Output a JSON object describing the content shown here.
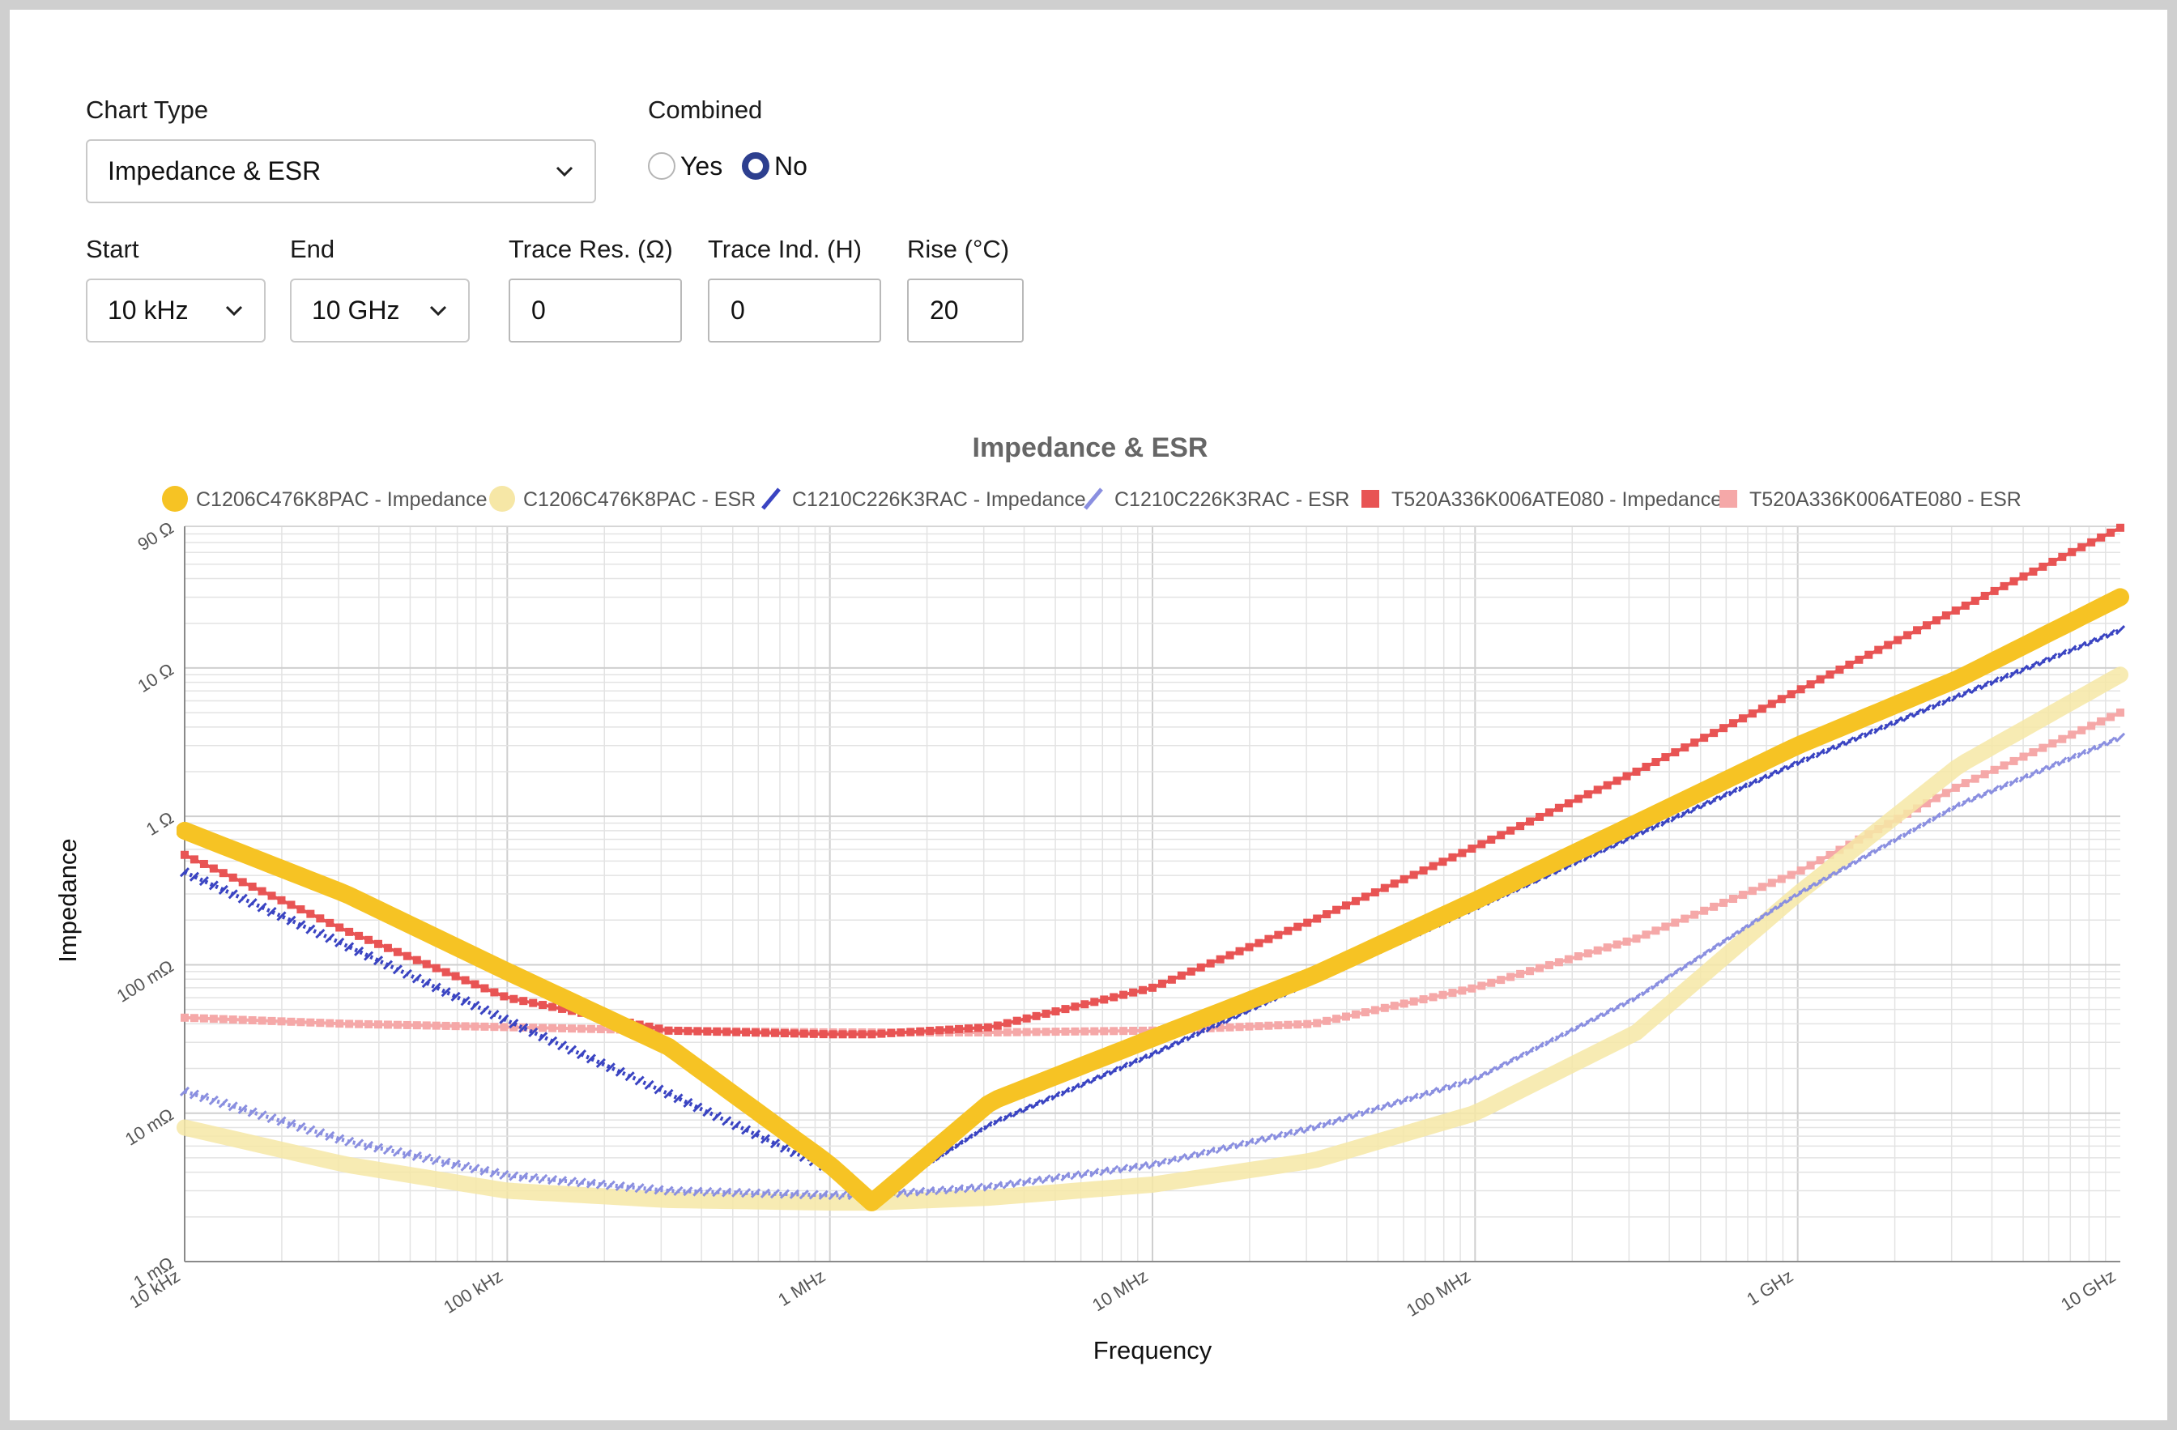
{
  "controls": {
    "chart_type_label": "Chart Type",
    "chart_type_value": "Impedance & ESR",
    "combined_label": "Combined",
    "combined_yes": "Yes",
    "combined_no": "No",
    "combined_selected": "No",
    "start_label": "Start",
    "start_value": "10 kHz",
    "end_label": "End",
    "end_value": "10 GHz",
    "trace_res_label": "Trace Res. (Ω)",
    "trace_res_value": "0",
    "trace_ind_label": "Trace Ind. (H)",
    "trace_ind_value": "0",
    "rise_label": "Rise (°C)",
    "rise_value": "20"
  },
  "chart_data": {
    "type": "line",
    "title": "Impedance & ESR",
    "xlabel": "Frequency",
    "ylabel": "Impedance",
    "x_scale": "log",
    "y_scale": "log",
    "xlim": [
      10000,
      10000000000
    ],
    "ylim": [
      0.001,
      90
    ],
    "grid": true,
    "legend_position": "top",
    "x_ticks": [
      {
        "value": 10000,
        "label": "10 kHz"
      },
      {
        "value": 100000,
        "label": "100 kHz"
      },
      {
        "value": 1000000,
        "label": "1 MHz"
      },
      {
        "value": 10000000,
        "label": "10 MHz"
      },
      {
        "value": 100000000,
        "label": "100 MHz"
      },
      {
        "value": 1000000000,
        "label": "1 GHz"
      },
      {
        "value": 10000000000,
        "label": "10 GHz"
      }
    ],
    "y_ticks": [
      {
        "value": 0.001,
        "label": "1 mΩ"
      },
      {
        "value": 0.01,
        "label": "10 mΩ"
      },
      {
        "value": 0.1,
        "label": "100 mΩ"
      },
      {
        "value": 1,
        "label": "1 Ω"
      },
      {
        "value": 10,
        "label": "10 Ω"
      },
      {
        "value": 90,
        "label": "90 Ω"
      }
    ],
    "x": [
      10000,
      31623,
      100000,
      316228,
      1000000,
      1350000,
      3162278,
      10000000,
      31622777,
      100000000,
      316227766,
      1000000000,
      3162277660,
      10000000000
    ],
    "series": [
      {
        "name": "C1206C476K8PAC - Impedance",
        "color": "#f6c324",
        "marker": "circle",
        "style": "thick",
        "values": [
          0.8,
          0.3,
          0.09,
          0.028,
          0.0045,
          0.0025,
          0.012,
          0.032,
          0.085,
          0.27,
          0.9,
          3.0,
          8.5,
          30
        ]
      },
      {
        "name": "C1206C476K8PAC - ESR",
        "color": "#f6e7a6",
        "marker": "circle",
        "style": "thick",
        "values": [
          0.008,
          0.0045,
          0.003,
          0.0026,
          0.0025,
          0.0025,
          0.0027,
          0.0033,
          0.0048,
          0.01,
          0.035,
          0.3,
          2.2,
          9
        ]
      },
      {
        "name": "C1210C226K3RAC - Impedance",
        "color": "#3a44c2",
        "marker": "line",
        "style": "thin",
        "values": [
          0.42,
          0.135,
          0.042,
          0.0135,
          0.0042,
          0.0026,
          0.0085,
          0.025,
          0.078,
          0.24,
          0.75,
          2.3,
          6.5,
          18
        ]
      },
      {
        "name": "C1210C226K3RAC - ESR",
        "color": "#8a8fe0",
        "marker": "line",
        "style": "thin",
        "values": [
          0.014,
          0.0065,
          0.0038,
          0.003,
          0.0028,
          0.0028,
          0.0032,
          0.0045,
          0.008,
          0.017,
          0.06,
          0.3,
          1.2,
          3.4
        ]
      },
      {
        "name": "T520A336K006ATE080 - Impedance",
        "color": "#e85454",
        "marker": "square",
        "style": "thin",
        "values": [
          0.55,
          0.17,
          0.06,
          0.036,
          0.034,
          0.034,
          0.038,
          0.07,
          0.2,
          0.62,
          2.0,
          7.0,
          25,
          88
        ]
      },
      {
        "name": "T520A336K006ATE080 - ESR",
        "color": "#f5a8a8",
        "marker": "square",
        "style": "thin",
        "values": [
          0.044,
          0.04,
          0.038,
          0.036,
          0.035,
          0.035,
          0.035,
          0.036,
          0.04,
          0.07,
          0.15,
          0.42,
          1.6,
          5
        ]
      }
    ]
  }
}
